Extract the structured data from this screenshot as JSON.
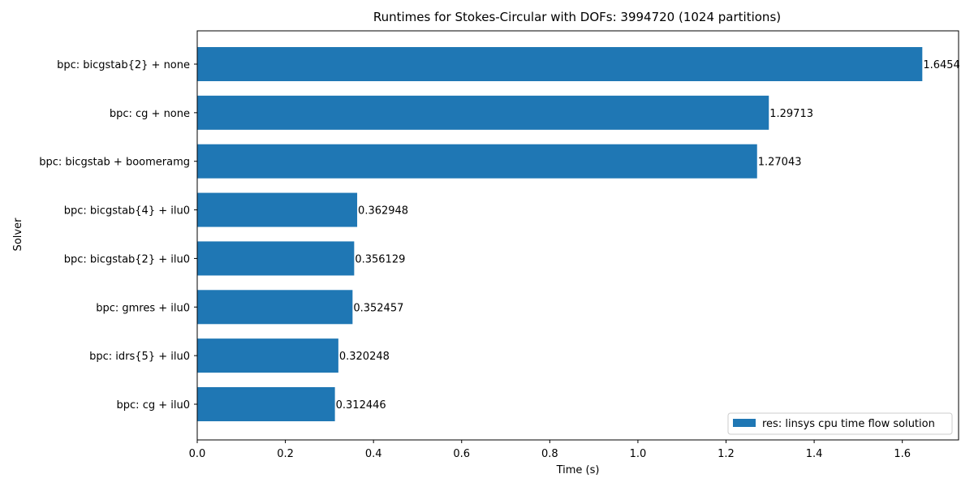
{
  "chart_data": {
    "type": "bar",
    "orientation": "horizontal",
    "title": "Runtimes for Stokes-Circular with DOFs: 3994720 (1024 partitions)",
    "xlabel": "Time (s)",
    "ylabel": "Solver",
    "xlim": [
      0,
      1.7277
    ],
    "xticks": [
      "0.0",
      "0.2",
      "0.4",
      "0.6",
      "0.8",
      "1.0",
      "1.2",
      "1.4",
      "1.6"
    ],
    "categories": [
      "bpc: bicgstab{2} + none",
      "bpc: cg + none",
      "bpc: bicgstab + boomeramg",
      "bpc: bicgstab{4} + ilu0",
      "bpc: bicgstab{2} + ilu0",
      "bpc: gmres + ilu0",
      "bpc: idrs{5} + ilu0",
      "bpc: cg + ilu0"
    ],
    "series": [
      {
        "name": "res: linsys cpu time flow solution",
        "values": [
          1.6454,
          1.29713,
          1.27043,
          0.362948,
          0.356129,
          0.352457,
          0.320248,
          0.312446
        ],
        "labels": [
          "1.6454",
          "1.29713",
          "1.27043",
          "0.362948",
          "0.356129",
          "0.352457",
          "0.320248",
          "0.312446"
        ]
      }
    ],
    "bar_color": "#1f77b4",
    "grid": false,
    "legend_position": "lower-right"
  }
}
